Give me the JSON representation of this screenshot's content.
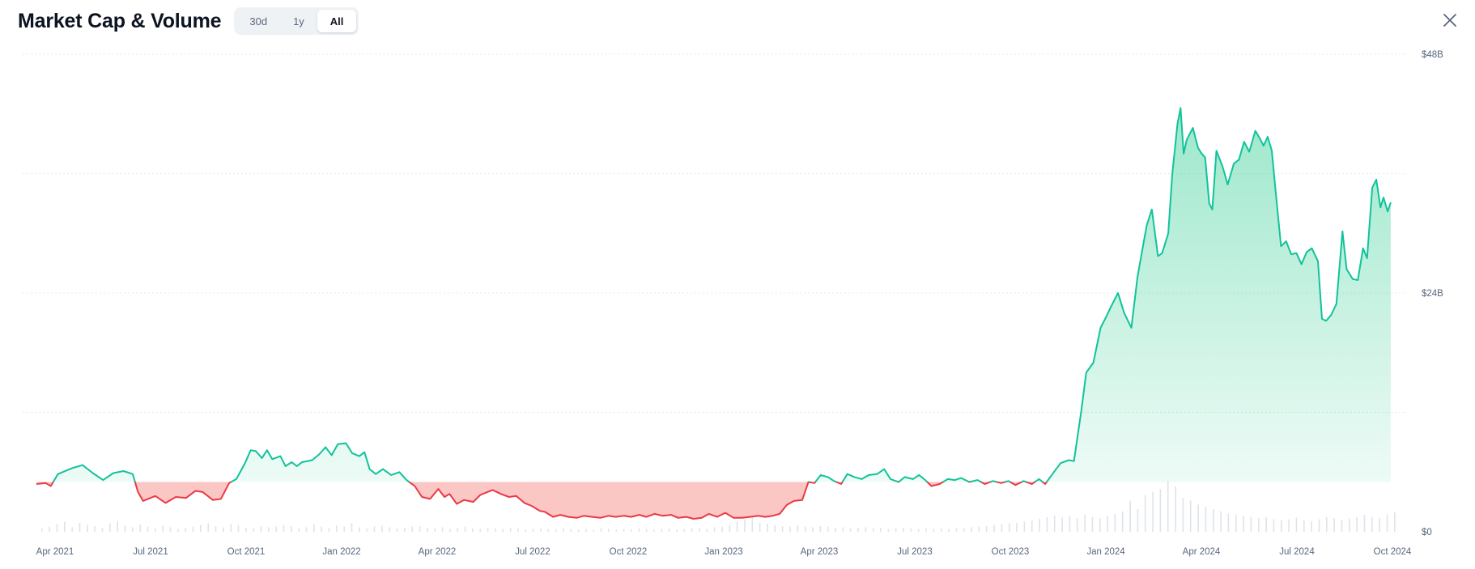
{
  "header": {
    "title": "Market Cap & Volume",
    "ranges": [
      "30d",
      "1y",
      "All"
    ],
    "active_range": "All"
  },
  "icons": {
    "close": "close-icon"
  },
  "colors": {
    "up": "#16c784",
    "up_line": "#10c39a",
    "down": "#ea3943",
    "down_fill": "#fbc4c1",
    "grid": "#e6e9ee",
    "axis_text": "#58667e",
    "volume": "#dfe3ea"
  },
  "chart_data": {
    "type": "area",
    "title": "Market Cap & Volume",
    "baseline": 5.0,
    "ylim": [
      0,
      48
    ],
    "y_ticks": [
      {
        "value": 48,
        "label": "$48B"
      },
      {
        "value": 24,
        "label": "$24B"
      },
      {
        "value": 0,
        "label": "$0"
      }
    ],
    "x_ticks": [
      "Apr 2021",
      "Jul 2021",
      "Oct 2021",
      "Jan 2022",
      "Apr 2022",
      "Jul 2022",
      "Oct 2022",
      "Jan 2023",
      "Apr 2023",
      "Jul 2023",
      "Oct 2023",
      "Jan 2024",
      "Apr 2024",
      "Jul 2024",
      "Oct 2024"
    ],
    "x_range": [
      "2021-03-01",
      "2024-10-20"
    ],
    "grid": true,
    "series": [
      {
        "values": [
          [
            "2021-03-01",
            4.8
          ],
          [
            "2021-03-10",
            4.9
          ],
          [
            "2021-03-15",
            4.6
          ],
          [
            "2021-03-22",
            5.8
          ],
          [
            "2021-04-05",
            6.4
          ],
          [
            "2021-04-15",
            6.7
          ],
          [
            "2021-04-25",
            5.9
          ],
          [
            "2021-05-05",
            5.2
          ],
          [
            "2021-05-15",
            5.9
          ],
          [
            "2021-05-25",
            6.1
          ],
          [
            "2021-06-03",
            5.8
          ],
          [
            "2021-06-08",
            4.0
          ],
          [
            "2021-06-13",
            3.1
          ],
          [
            "2021-06-25",
            3.6
          ],
          [
            "2021-07-05",
            2.9
          ],
          [
            "2021-07-15",
            3.5
          ],
          [
            "2021-07-25",
            3.4
          ],
          [
            "2021-08-03",
            4.1
          ],
          [
            "2021-08-10",
            4.0
          ],
          [
            "2021-08-20",
            3.2
          ],
          [
            "2021-08-28",
            3.3
          ],
          [
            "2021-09-05",
            4.9
          ],
          [
            "2021-09-12",
            5.3
          ],
          [
            "2021-09-20",
            6.8
          ],
          [
            "2021-09-26",
            8.2
          ],
          [
            "2021-10-01",
            8.1
          ],
          [
            "2021-10-07",
            7.4
          ],
          [
            "2021-10-12",
            8.2
          ],
          [
            "2021-10-17",
            7.3
          ],
          [
            "2021-10-25",
            7.6
          ],
          [
            "2021-10-30",
            6.6
          ],
          [
            "2021-11-05",
            7.0
          ],
          [
            "2021-11-10",
            6.6
          ],
          [
            "2021-11-15",
            7.0
          ],
          [
            "2021-11-25",
            7.2
          ],
          [
            "2021-12-02",
            7.8
          ],
          [
            "2021-12-08",
            8.5
          ],
          [
            "2021-12-14",
            7.7
          ],
          [
            "2021-12-20",
            8.8
          ],
          [
            "2021-12-28",
            8.9
          ],
          [
            "2022-01-03",
            7.9
          ],
          [
            "2022-01-10",
            7.6
          ],
          [
            "2022-01-15",
            8.0
          ],
          [
            "2022-01-20",
            6.3
          ],
          [
            "2022-01-26",
            5.8
          ],
          [
            "2022-02-02",
            6.3
          ],
          [
            "2022-02-10",
            5.7
          ],
          [
            "2022-02-18",
            6.0
          ],
          [
            "2022-02-25",
            5.2
          ],
          [
            "2022-03-05",
            4.6
          ],
          [
            "2022-03-12",
            3.5
          ],
          [
            "2022-03-20",
            3.3
          ],
          [
            "2022-03-28",
            4.3
          ],
          [
            "2022-04-03",
            3.5
          ],
          [
            "2022-04-08",
            3.8
          ],
          [
            "2022-04-15",
            2.8
          ],
          [
            "2022-04-22",
            3.2
          ],
          [
            "2022-05-01",
            3.0
          ],
          [
            "2022-05-08",
            3.7
          ],
          [
            "2022-05-20",
            4.2
          ],
          [
            "2022-05-28",
            3.8
          ],
          [
            "2022-06-05",
            3.5
          ],
          [
            "2022-06-12",
            3.6
          ],
          [
            "2022-06-20",
            2.9
          ],
          [
            "2022-06-27",
            2.6
          ],
          [
            "2022-07-05",
            2.1
          ],
          [
            "2022-07-10",
            2.0
          ],
          [
            "2022-07-18",
            1.5
          ],
          [
            "2022-07-25",
            1.7
          ],
          [
            "2022-08-02",
            1.5
          ],
          [
            "2022-08-10",
            1.4
          ],
          [
            "2022-08-17",
            1.6
          ],
          [
            "2022-08-25",
            1.5
          ],
          [
            "2022-09-02",
            1.4
          ],
          [
            "2022-09-10",
            1.6
          ],
          [
            "2022-09-17",
            1.5
          ],
          [
            "2022-09-25",
            1.6
          ],
          [
            "2022-10-02",
            1.5
          ],
          [
            "2022-10-10",
            1.7
          ],
          [
            "2022-10-17",
            1.5
          ],
          [
            "2022-10-25",
            1.8
          ],
          [
            "2022-11-02",
            1.6
          ],
          [
            "2022-11-10",
            1.7
          ],
          [
            "2022-11-17",
            1.4
          ],
          [
            "2022-11-25",
            1.5
          ],
          [
            "2022-12-02",
            1.3
          ],
          [
            "2022-12-10",
            1.4
          ],
          [
            "2022-12-17",
            1.8
          ],
          [
            "2022-12-25",
            1.5
          ],
          [
            "2023-01-02",
            1.9
          ],
          [
            "2023-01-10",
            1.4
          ],
          [
            "2023-01-18",
            1.4
          ],
          [
            "2023-01-26",
            1.5
          ],
          [
            "2023-02-03",
            1.6
          ],
          [
            "2023-02-10",
            1.5
          ],
          [
            "2023-02-17",
            1.6
          ],
          [
            "2023-02-24",
            1.8
          ],
          [
            "2023-03-03",
            2.7
          ],
          [
            "2023-03-10",
            3.1
          ],
          [
            "2023-03-18",
            3.2
          ],
          [
            "2023-03-24",
            5.0
          ],
          [
            "2023-03-30",
            4.9
          ],
          [
            "2023-04-05",
            5.7
          ],
          [
            "2023-04-12",
            5.5
          ],
          [
            "2023-04-18",
            5.1
          ],
          [
            "2023-04-25",
            4.8
          ],
          [
            "2023-05-01",
            5.8
          ],
          [
            "2023-05-08",
            5.5
          ],
          [
            "2023-05-15",
            5.3
          ],
          [
            "2023-05-22",
            5.7
          ],
          [
            "2023-05-30",
            5.8
          ],
          [
            "2023-06-06",
            6.3
          ],
          [
            "2023-06-12",
            5.3
          ],
          [
            "2023-06-20",
            5.0
          ],
          [
            "2023-06-26",
            5.5
          ],
          [
            "2023-07-04",
            5.3
          ],
          [
            "2023-07-10",
            5.7
          ],
          [
            "2023-07-16",
            5.2
          ],
          [
            "2023-07-22",
            4.6
          ],
          [
            "2023-07-30",
            4.8
          ],
          [
            "2023-08-07",
            5.3
          ],
          [
            "2023-08-14",
            5.2
          ],
          [
            "2023-08-20",
            5.4
          ],
          [
            "2023-08-28",
            5.0
          ],
          [
            "2023-09-05",
            5.2
          ],
          [
            "2023-09-12",
            4.8
          ],
          [
            "2023-09-20",
            5.1
          ],
          [
            "2023-09-28",
            4.9
          ],
          [
            "2023-10-05",
            5.1
          ],
          [
            "2023-10-12",
            4.7
          ],
          [
            "2023-10-20",
            5.1
          ],
          [
            "2023-10-28",
            4.8
          ],
          [
            "2023-11-04",
            5.3
          ],
          [
            "2023-11-10",
            4.8
          ],
          [
            "2023-11-17",
            5.8
          ],
          [
            "2023-11-25",
            6.9
          ],
          [
            "2023-12-03",
            7.2
          ],
          [
            "2023-12-08",
            7.1
          ],
          [
            "2023-12-15",
            12.0
          ],
          [
            "2023-12-20",
            16.0
          ],
          [
            "2023-12-27",
            17.0
          ],
          [
            "2024-01-03",
            20.5
          ],
          [
            "2024-01-08",
            21.5
          ],
          [
            "2024-01-13",
            22.6
          ],
          [
            "2024-01-20",
            24.0
          ],
          [
            "2024-01-26",
            22.0
          ],
          [
            "2024-02-02",
            20.5
          ],
          [
            "2024-02-08",
            25.6
          ],
          [
            "2024-02-13",
            28.5
          ],
          [
            "2024-02-17",
            30.8
          ],
          [
            "2024-02-22",
            32.4
          ],
          [
            "2024-02-28",
            27.7
          ],
          [
            "2024-03-03",
            28.0
          ],
          [
            "2024-03-09",
            30.0
          ],
          [
            "2024-03-13",
            36.0
          ],
          [
            "2024-03-18",
            41.0
          ],
          [
            "2024-03-21",
            42.6
          ],
          [
            "2024-03-24",
            38.0
          ],
          [
            "2024-03-27",
            39.4
          ],
          [
            "2024-04-02",
            40.6
          ],
          [
            "2024-04-07",
            38.6
          ],
          [
            "2024-04-10",
            38.1
          ],
          [
            "2024-04-14",
            37.6
          ],
          [
            "2024-04-18",
            33.0
          ],
          [
            "2024-04-21",
            32.4
          ],
          [
            "2024-04-25",
            38.3
          ],
          [
            "2024-05-01",
            36.7
          ],
          [
            "2024-05-06",
            34.9
          ],
          [
            "2024-05-12",
            37.0
          ],
          [
            "2024-05-17",
            37.4
          ],
          [
            "2024-05-22",
            39.2
          ],
          [
            "2024-05-27",
            38.2
          ],
          [
            "2024-06-02",
            40.3
          ],
          [
            "2024-06-06",
            39.6
          ],
          [
            "2024-06-10",
            38.8
          ],
          [
            "2024-06-14",
            39.7
          ],
          [
            "2024-06-18",
            38.3
          ],
          [
            "2024-06-22",
            34.0
          ],
          [
            "2024-06-27",
            28.7
          ],
          [
            "2024-07-02",
            29.2
          ],
          [
            "2024-07-07",
            27.9
          ],
          [
            "2024-07-12",
            28.0
          ],
          [
            "2024-07-17",
            26.9
          ],
          [
            "2024-07-22",
            28.1
          ],
          [
            "2024-07-27",
            28.5
          ],
          [
            "2024-08-02",
            27.2
          ],
          [
            "2024-08-06",
            21.4
          ],
          [
            "2024-08-10",
            21.2
          ],
          [
            "2024-08-15",
            21.8
          ],
          [
            "2024-08-20",
            22.9
          ],
          [
            "2024-08-26",
            30.2
          ],
          [
            "2024-08-30",
            26.4
          ],
          [
            "2024-09-05",
            25.4
          ],
          [
            "2024-09-10",
            25.3
          ],
          [
            "2024-09-15",
            28.5
          ],
          [
            "2024-09-19",
            27.5
          ],
          [
            "2024-09-24",
            34.6
          ],
          [
            "2024-09-28",
            35.4
          ],
          [
            "2024-10-02",
            32.6
          ],
          [
            "2024-10-05",
            33.6
          ],
          [
            "2024-10-09",
            32.2
          ],
          [
            "2024-10-12",
            33.1
          ]
        ]
      }
    ],
    "volume": [
      0.6,
      0.9,
      1.4,
      1.8,
      0.8,
      1.6,
      1.2,
      1.0,
      0.7,
      1.5,
      1.9,
      1.1,
      0.8,
      1.3,
      0.9,
      0.6,
      1.1,
      0.8,
      0.5,
      0.7,
      0.9,
      1.2,
      1.5,
      1.0,
      0.8,
      1.4,
      1.1,
      0.7,
      0.6,
      1.0,
      0.8,
      0.9,
      1.2,
      1.0,
      0.6,
      0.8,
      1.3,
      0.9,
      0.7,
      1.1,
      0.9,
      1.5,
      0.8,
      0.6,
      0.9,
      1.1,
      0.8,
      0.6,
      0.7,
      0.9,
      1.0,
      0.7,
      0.6,
      0.8,
      0.5,
      0.7,
      0.9,
      0.6,
      0.5,
      0.7,
      0.6,
      0.5,
      0.7,
      0.6,
      0.4,
      0.5,
      0.6,
      0.5,
      0.4,
      0.6,
      0.5,
      0.4,
      0.5,
      0.4,
      0.6,
      0.5,
      0.4,
      0.5,
      0.4,
      0.6,
      0.5,
      0.4,
      0.5,
      0.6,
      0.4,
      0.5,
      0.7,
      0.6,
      0.5,
      0.8,
      0.9,
      1.2,
      1.8,
      2.2,
      3.0,
      1.6,
      1.4,
      1.2,
      1.0,
      0.9,
      1.1,
      0.9,
      0.8,
      1.0,
      0.9,
      0.7,
      0.8,
      0.6,
      0.7,
      0.8,
      0.6,
      0.7,
      0.5,
      0.6,
      0.7,
      0.6,
      0.5,
      0.6,
      0.5,
      0.6,
      0.5,
      0.6,
      0.7,
      0.8,
      0.9,
      1.0,
      1.2,
      1.3,
      1.5,
      1.6,
      1.8,
      2.0,
      2.3,
      2.6,
      2.9,
      2.5,
      2.8,
      2.4,
      3.0,
      2.6,
      2.4,
      2.8,
      3.2,
      3.6,
      5.5,
      4.0,
      6.5,
      7.0,
      7.5,
      9.0,
      8.0,
      6.0,
      5.5,
      4.8,
      4.4,
      4.0,
      3.6,
      3.2,
      3.0,
      2.8,
      2.6,
      2.4,
      2.6,
      2.2,
      2.0,
      2.2,
      2.5,
      2.0,
      1.8,
      2.2,
      2.6,
      2.4,
      2.0,
      2.3,
      2.6,
      3.0,
      2.6,
      2.4,
      3.0,
      3.4
    ]
  }
}
